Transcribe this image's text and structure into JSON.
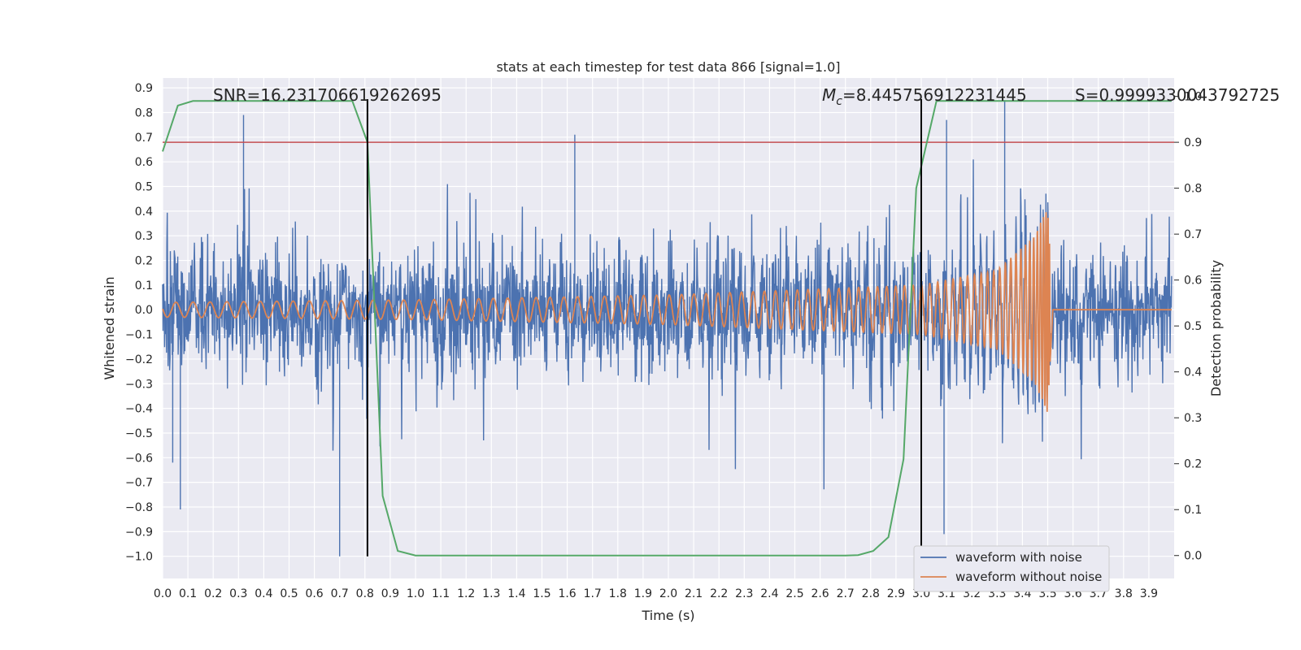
{
  "chart_data": {
    "type": "line",
    "title": "stats at each timestep for test data 866 [signal=1.0]",
    "xlabel": "Time (s)",
    "ylabel": "Whitened strain",
    "y2label": "Detection probability",
    "xlim": [
      0.0,
      4.0
    ],
    "ylim": [
      -1.09,
      0.94
    ],
    "y2lim": [
      -0.05,
      1.04
    ],
    "xticks": [
      "0.0",
      "0.1",
      "0.2",
      "0.3",
      "0.4",
      "0.5",
      "0.6",
      "0.7",
      "0.8",
      "0.9",
      "1.0",
      "1.1",
      "1.2",
      "1.3",
      "1.4",
      "1.5",
      "1.6",
      "1.7",
      "1.8",
      "1.9",
      "2.0",
      "2.1",
      "2.2",
      "2.3",
      "2.4",
      "2.5",
      "2.6",
      "2.7",
      "2.8",
      "2.9",
      "3.0",
      "3.1",
      "3.2",
      "3.3",
      "3.4",
      "3.5",
      "3.6",
      "3.7",
      "3.8",
      "3.9"
    ],
    "yticks": [
      "0.9",
      "0.8",
      "0.7",
      "0.6",
      "0.5",
      "0.4",
      "0.3",
      "0.2",
      "0.1",
      "0.0",
      "−0.1",
      "−0.2",
      "−0.3",
      "−0.4",
      "−0.5",
      "−0.6",
      "−0.7",
      "−0.8",
      "−0.9",
      "−1.0"
    ],
    "y2ticks": [
      "1.0",
      "0.9",
      "0.8",
      "0.7",
      "0.6",
      "0.5",
      "0.4",
      "0.3",
      "0.2",
      "0.1",
      "0.0"
    ],
    "grid": true,
    "legend": "lower-right",
    "annotations": {
      "snr": "SNR=16.231706619262695",
      "mc_symbol": "M",
      "mc_sub": "c",
      "mc_value": "=8.445756912231445",
      "s": "S=0.9999330043792725"
    },
    "threshold_y2": 0.9,
    "vlines_x": [
      0.81,
      3.0
    ],
    "colors": {
      "noisy": "#4c72b0",
      "clean": "#dd8452",
      "prob": "#55a868",
      "threshold": "#c44e52",
      "background": "#eaeaf2"
    },
    "series": [
      {
        "name": "waveform with noise",
        "note": "dense noise, peak range approx -1.0 to 0.85",
        "envelope_peaks": [
          {
            "x": 0.32,
            "y": 0.79
          },
          {
            "x": 0.7,
            "y": -1.0
          },
          {
            "x": 0.04,
            "y": -0.62
          },
          {
            "x": 0.07,
            "y": -0.81
          },
          {
            "x": 1.63,
            "y": 0.71
          },
          {
            "x": 3.09,
            "y": -0.91
          },
          {
            "x": 3.33,
            "y": 0.85
          },
          {
            "x": 3.1,
            "y": 0.77
          }
        ]
      },
      {
        "name": "waveform without noise",
        "note": "chirp signal, amplitude rising to merger near t=3.5",
        "amplitude_at": [
          {
            "x": 0.0,
            "y": 0.03
          },
          {
            "x": 1.0,
            "y": 0.04
          },
          {
            "x": 2.0,
            "y": 0.06
          },
          {
            "x": 3.0,
            "y": 0.1
          },
          {
            "x": 3.3,
            "y": 0.16
          },
          {
            "x": 3.45,
            "y": 0.3
          },
          {
            "x": 3.5,
            "y": 0.42
          },
          {
            "x": 3.52,
            "y": 0.0
          }
        ]
      },
      {
        "name": "detection probability",
        "axis": "y2",
        "x": [
          0.0,
          0.06,
          0.12,
          0.2,
          0.3,
          0.4,
          0.5,
          0.6,
          0.75,
          0.81,
          0.87,
          0.93,
          1.0,
          1.5,
          2.0,
          2.5,
          2.7,
          2.75,
          2.81,
          2.87,
          2.93,
          2.98,
          3.06,
          3.2,
          3.5,
          3.8,
          3.99
        ],
        "y": [
          0.88,
          0.98,
          0.99,
          0.99,
          0.99,
          0.99,
          0.99,
          0.99,
          0.99,
          0.9,
          0.13,
          0.01,
          0.0,
          0.0,
          0.0,
          0.0,
          0.0,
          0.001,
          0.01,
          0.04,
          0.21,
          0.8,
          0.99,
          0.99,
          0.99,
          0.99,
          0.99
        ]
      }
    ]
  }
}
